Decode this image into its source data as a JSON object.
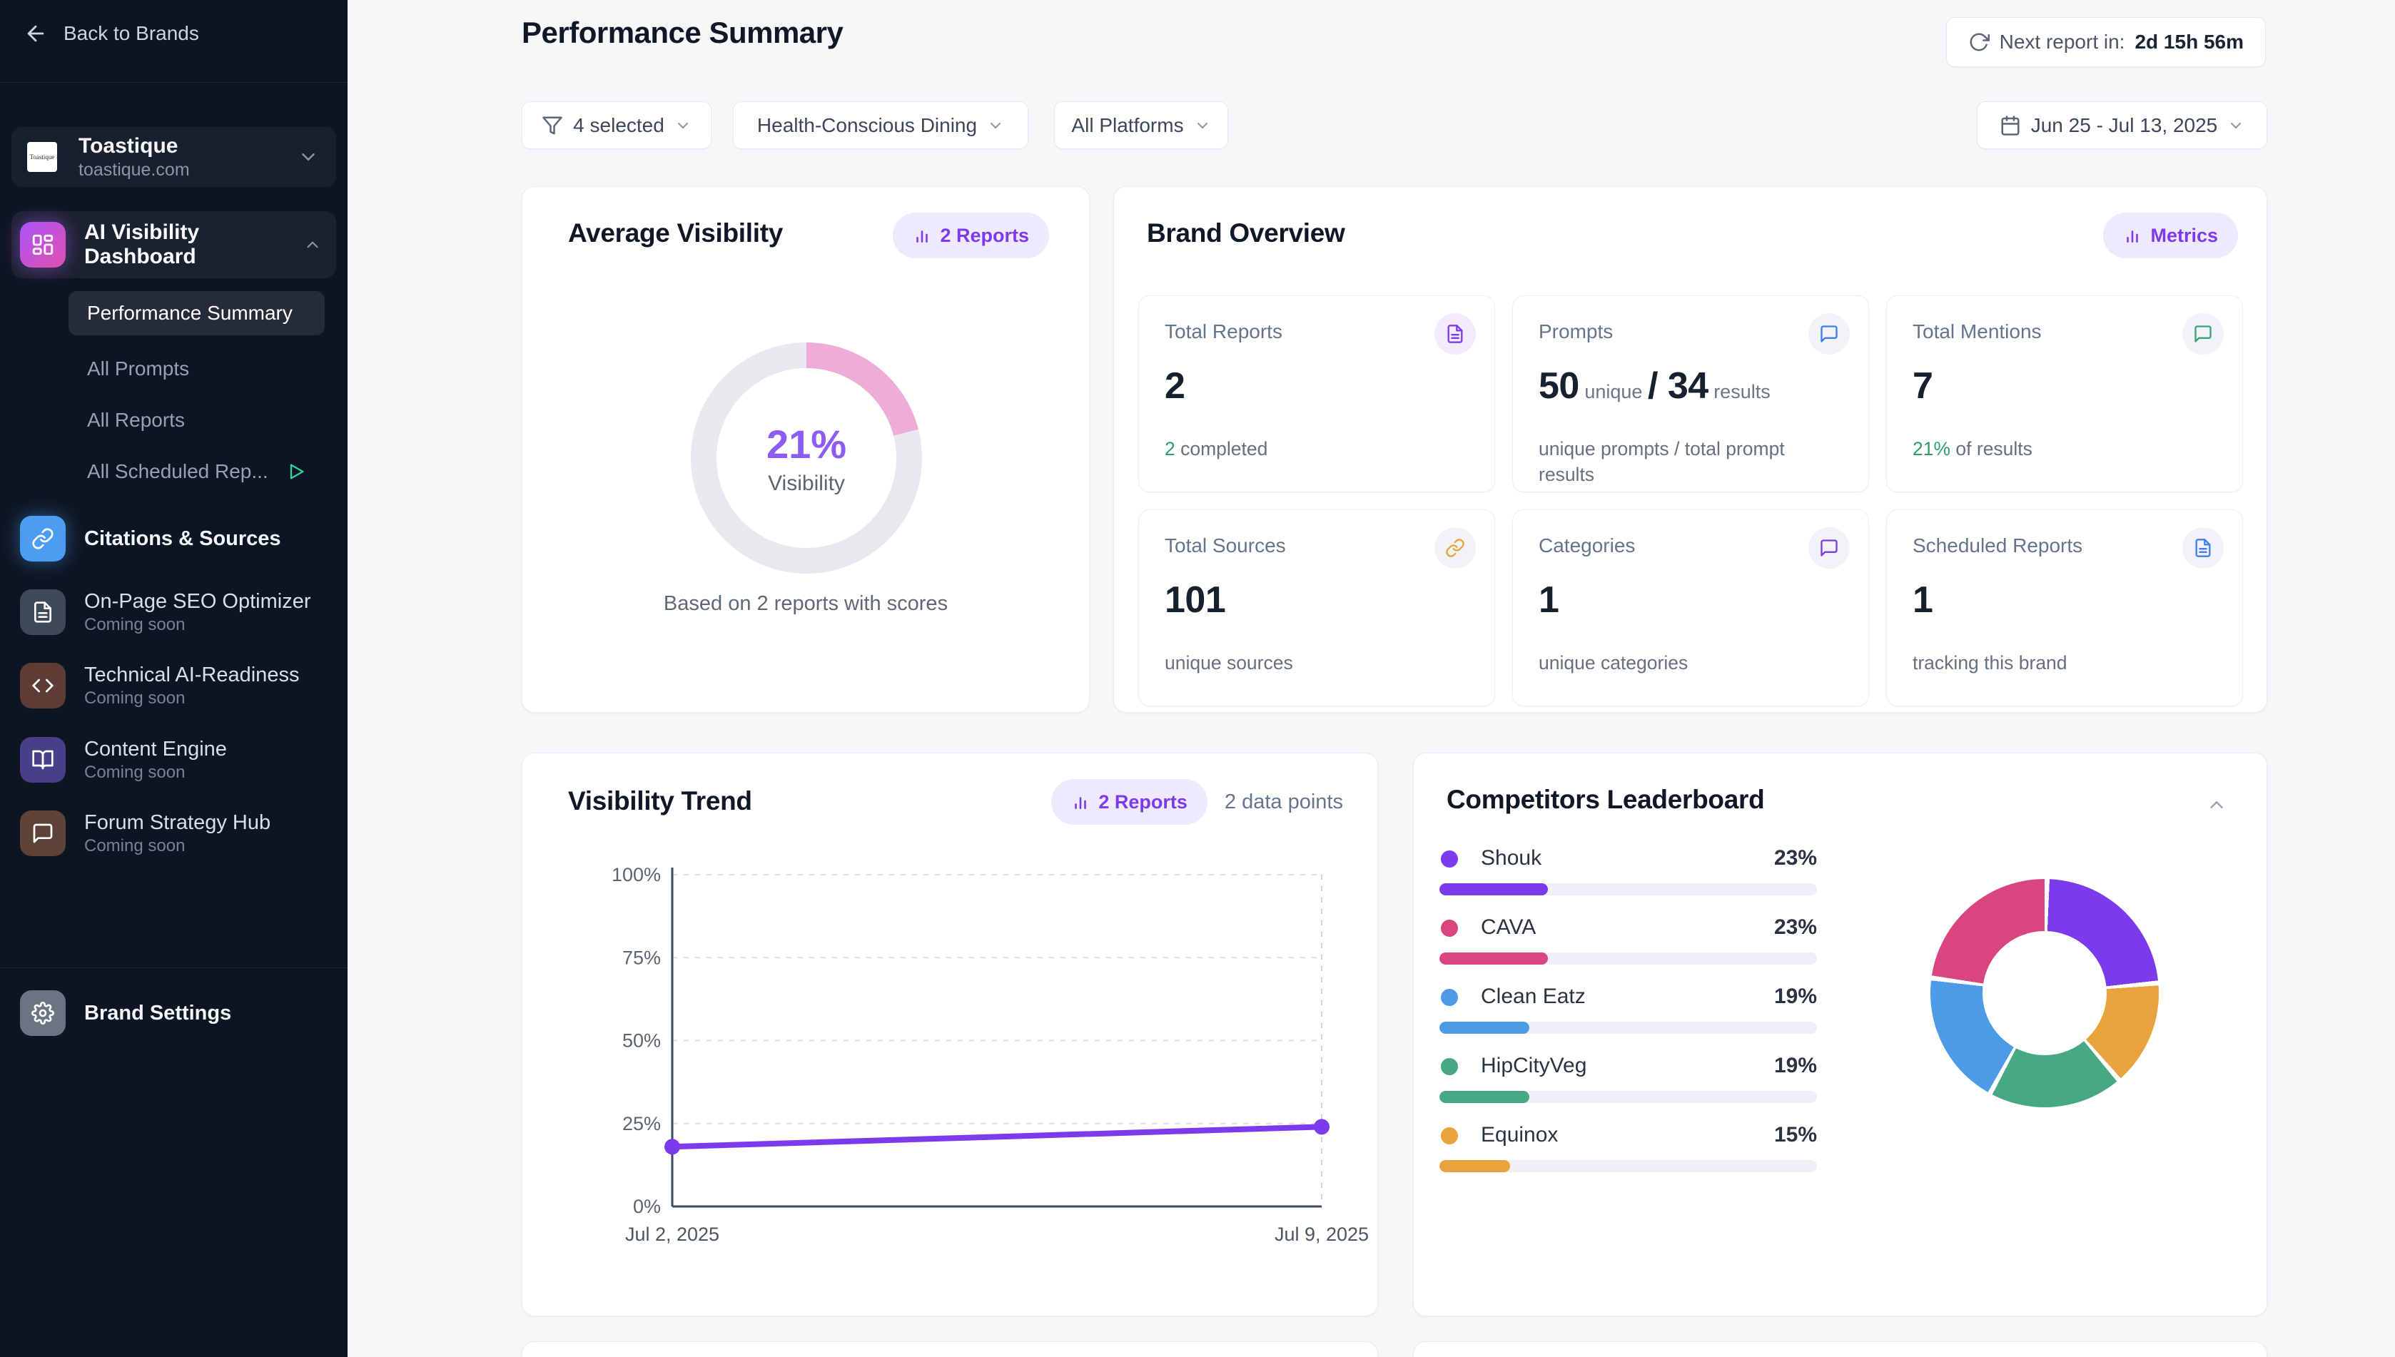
{
  "colors": {
    "accent_purple": "#7c3aed",
    "badge_bg": "#efe9fd",
    "green": "#2f9e68",
    "sidebar_bg": "#0d1522",
    "pink_arc": "#eeadd8",
    "ring_track": "#e7e9ee"
  },
  "sidebar": {
    "back_label": "Back to Brands",
    "brand": {
      "name": "Toastique",
      "domain": "toastique.com",
      "logo_text": "Toastique"
    },
    "dashboard": {
      "label": "AI Visibility Dashboard",
      "items": [
        {
          "label": "Performance Summary",
          "active": true
        },
        {
          "label": "All Prompts",
          "active": false
        },
        {
          "label": "All Reports",
          "active": false
        },
        {
          "label": "All Scheduled Rep...",
          "active": false
        }
      ]
    },
    "modules": [
      {
        "label": "Citations & Sources",
        "sublabel": "",
        "icon": "link",
        "icon_bg": "#4a9df0"
      },
      {
        "label": "On-Page SEO Optimizer",
        "sublabel": "Coming soon",
        "icon": "document",
        "icon_bg": "#3e4a59"
      },
      {
        "label": "Technical AI-Readiness",
        "sublabel": "Coming soon",
        "icon": "code",
        "icon_bg": "#5d3c35"
      },
      {
        "label": "Content Engine",
        "sublabel": "Coming soon",
        "icon": "book",
        "icon_bg": "#473f8a"
      },
      {
        "label": "Forum Strategy Hub",
        "sublabel": "Coming soon",
        "icon": "chat",
        "icon_bg": "#5e4238"
      }
    ],
    "settings_label": "Brand Settings"
  },
  "header": {
    "title": "Performance Summary",
    "next_report_label": "Next report in:",
    "next_report_value": "2d 15h 56m"
  },
  "filters": {
    "prompts": "4 selected",
    "category": "Health-Conscious Dining",
    "platforms": "All Platforms",
    "date_range": "Jun 25 - Jul 13, 2025"
  },
  "cards": {
    "average_visibility": {
      "title": "Average Visibility",
      "badge": "2 Reports",
      "center_value": "21%",
      "center_caption": "Visibility",
      "footnote": "Based on 2 reports with scores"
    },
    "brand_overview": {
      "title": "Brand Overview",
      "badge": "Metrics",
      "tiles": [
        {
          "label": "Total Reports",
          "icon": "document",
          "icon_color": "#7c3aed",
          "bubble_bg": "#f2ebfe",
          "value": "2",
          "sub_accent": "2",
          "sub_text": " completed"
        },
        {
          "label": "Prompts",
          "icon": "chat",
          "icon_color": "#3f7ef0",
          "bubble_bg": "#f1f3f7",
          "value": "50",
          "value_unit": " unique ",
          "value_sep": "/ ",
          "value2": "34",
          "value2_unit": " results",
          "sub_text": "unique prompts / total prompt results"
        },
        {
          "label": "Total Mentions",
          "icon": "chat",
          "icon_color": "#3ba273",
          "bubble_bg": "#f1f3f7",
          "value": "7",
          "sub_accent": "21%",
          "sub_text": " of results"
        },
        {
          "label": "Total Sources",
          "icon": "link",
          "icon_color": "#e8a33c",
          "bubble_bg": "#f1f3f7",
          "value": "101",
          "sub_text": "unique sources"
        },
        {
          "label": "Categories",
          "icon": "chat",
          "icon_color": "#7c3aed",
          "bubble_bg": "#f1f3f7",
          "value": "1",
          "sub_text": "unique categories"
        },
        {
          "label": "Scheduled Reports",
          "icon": "document",
          "icon_color": "#3f7ef0",
          "bubble_bg": "#f1f3f7",
          "value": "1",
          "sub_text": "tracking this brand"
        }
      ]
    },
    "visibility_trend": {
      "title": "Visibility Trend",
      "badge": "2 Reports",
      "meta": "2 data points"
    },
    "competitors": {
      "title": "Competitors Leaderboard",
      "rows": [
        {
          "name": "Shouk",
          "pct": "23%",
          "value": 23,
          "color": "#7c3aed"
        },
        {
          "name": "CAVA",
          "pct": "23%",
          "value": 23,
          "color": "#d9467f"
        },
        {
          "name": "Clean Eatz",
          "pct": "19%",
          "value": 19,
          "color": "#4d9be6"
        },
        {
          "name": "HipCityVeg",
          "pct": "19%",
          "value": 19,
          "color": "#46a981"
        },
        {
          "name": "Equinox",
          "pct": "15%",
          "value": 15,
          "color": "#e8a33c"
        }
      ],
      "bar_scale_max": 80
    }
  },
  "chart_data": [
    {
      "id": "average-visibility-donut",
      "type": "donut",
      "title": "Average Visibility",
      "categories": [
        "Visible",
        "Remaining"
      ],
      "values": [
        21,
        79
      ],
      "center_label": "21%",
      "center_caption": "Visibility",
      "arc_color": "#eeadd8",
      "track_color": "#e7e9ee",
      "note": "Based on 2 reports with scores"
    },
    {
      "id": "visibility-trend",
      "type": "line",
      "title": "Visibility Trend",
      "x": [
        "Jul 2, 2025",
        "Jul 9, 2025"
      ],
      "series": [
        {
          "name": "Visibility",
          "values": [
            18,
            24
          ],
          "color": "#7c3aed"
        }
      ],
      "ylim": [
        0,
        100
      ],
      "yticks": [
        {
          "label": "0%",
          "value": 0
        },
        {
          "label": "25%",
          "value": 25
        },
        {
          "label": "50%",
          "value": 50
        },
        {
          "label": "75%",
          "value": 75
        },
        {
          "label": "100%",
          "value": 100
        }
      ],
      "grid": "dashed-horizontal",
      "legend": "none"
    },
    {
      "id": "competitors-donut",
      "type": "donut",
      "title": "Competitors Leaderboard",
      "segments_clockwise": [
        {
          "name": "Shouk",
          "value": 23,
          "color": "#7c3aed"
        },
        {
          "name": "Equinox",
          "value": 15,
          "color": "#e8a33c"
        },
        {
          "name": "HipCityVeg",
          "value": 19,
          "color": "#46a981"
        },
        {
          "name": "Clean Eatz",
          "value": 19,
          "color": "#4d9be6"
        },
        {
          "name": "CAVA",
          "value": 23,
          "color": "#d9467f"
        }
      ]
    }
  ]
}
